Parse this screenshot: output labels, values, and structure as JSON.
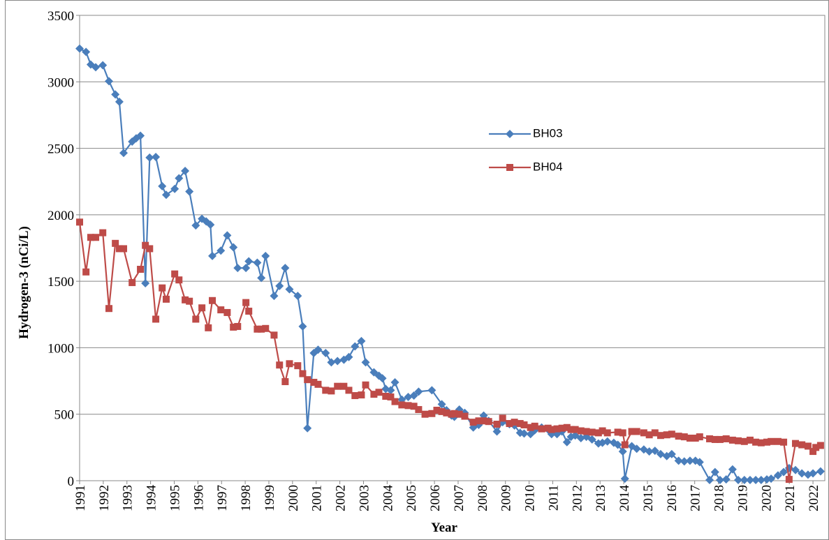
{
  "chart_data": {
    "type": "line",
    "xlabel": "Year",
    "ylabel": "Hydrogen-3 (nCi/L)",
    "xlim": [
      1991,
      2022.5
    ],
    "ylim": [
      0,
      3500
    ],
    "xticks": [
      1991,
      1992,
      1993,
      1994,
      1995,
      1996,
      1997,
      1998,
      1999,
      2000,
      2001,
      2002,
      2003,
      2004,
      2005,
      2006,
      2007,
      2008,
      2009,
      2010,
      2011,
      2012,
      2013,
      2014,
      2015,
      2016,
      2017,
      2018,
      2019,
      2020,
      2021,
      2022
    ],
    "yticks": [
      0,
      500,
      1000,
      1500,
      2000,
      2500,
      3000,
      3500
    ],
    "grid": true,
    "legend": "upper-center",
    "series": [
      {
        "name": "BH03",
        "color": "#4a7ebb",
        "marker": "diamond",
        "x": [
          1991,
          1991.27,
          1991.47,
          1991.68,
          1991.98,
          1992.24,
          1992.51,
          1992.68,
          1992.86,
          1993.22,
          1993.39,
          1993.57,
          1993.78,
          1993.96,
          1994.22,
          1994.49,
          1994.66,
          1995.02,
          1995.2,
          1995.46,
          1995.64,
          1995.91,
          1996.17,
          1996.35,
          1996.53,
          1996.61,
          1996.97,
          1997.24,
          1997.5,
          1997.68,
          1998.03,
          1998.15,
          1998.51,
          1998.68,
          1998.86,
          1999.22,
          1999.45,
          1999.69,
          1999.87,
          2000.22,
          2000.43,
          2000.63,
          2000.9,
          2001.08,
          2001.4,
          2001.64,
          2001.9,
          2002.17,
          2002.38,
          2002.64,
          2002.91,
          2003.09,
          2003.44,
          2003.65,
          2003.8,
          2003.94,
          2004.15,
          2004.33,
          2004.62,
          2004.89,
          2005.13,
          2005.33,
          2005.89,
          2006.31,
          2006.51,
          2006.72,
          2006.84,
          2007.05,
          2007.28,
          2007.64,
          2007.87,
          2008.08,
          2008.29,
          2008.64,
          2008.88,
          2009.17,
          2009.38,
          2009.62,
          2009.79,
          2010.06,
          2010.24,
          2010.53,
          2010.8,
          2010.95,
          2011.18,
          2011.39,
          2011.6,
          2011.77,
          2011.95,
          2012.19,
          2012.42,
          2012.66,
          2012.93,
          2013.1,
          2013.31,
          2013.58,
          2013.75,
          2013.96,
          2014.05,
          2014.34,
          2014.55,
          2014.85,
          2015.08,
          2015.32,
          2015.56,
          2015.82,
          2016.03,
          2016.32,
          2016.56,
          2016.8,
          2017.03,
          2017.21,
          2017.63,
          2017.86,
          2018.07,
          2018.33,
          2018.6,
          2018.84,
          2019.1,
          2019.34,
          2019.58,
          2019.81,
          2020.05,
          2020.23,
          2020.52,
          2020.76,
          2020.99,
          2021.26,
          2021.53,
          2021.79,
          2022,
          2022.32
        ],
        "values": [
          3250,
          3225,
          3130,
          3110,
          3125,
          3005,
          2905,
          2850,
          2465,
          2550,
          2575,
          2595,
          1485,
          2430,
          2435,
          2215,
          2150,
          2195,
          2275,
          2330,
          2175,
          1920,
          1970,
          1950,
          1925,
          1690,
          1730,
          1845,
          1755,
          1600,
          1600,
          1650,
          1640,
          1525,
          1690,
          1390,
          1465,
          1600,
          1440,
          1390,
          1160,
          395,
          960,
          985,
          960,
          890,
          900,
          910,
          930,
          1010,
          1050,
          890,
          815,
          790,
          770,
          690,
          680,
          740,
          610,
          630,
          640,
          670,
          680,
          575,
          530,
          490,
          480,
          535,
          510,
          400,
          420,
          490,
          450,
          370,
          440,
          425,
          415,
          360,
          355,
          350,
          380,
          400,
          385,
          350,
          350,
          370,
          290,
          330,
          340,
          320,
          330,
          310,
          280,
          285,
          295,
          285,
          270,
          220,
          15,
          260,
          240,
          235,
          220,
          225,
          200,
          185,
          200,
          150,
          145,
          150,
          150,
          140,
          5,
          65,
          5,
          10,
          85,
          5,
          5,
          5,
          5,
          5,
          10,
          15,
          40,
          65,
          95,
          80,
          55,
          45,
          55,
          70
        ]
      },
      {
        "name": "BH04",
        "color": "#be4b48",
        "marker": "square",
        "x": [
          1991,
          1991.27,
          1991.47,
          1991.68,
          1991.98,
          1992.24,
          1992.51,
          1992.68,
          1992.86,
          1993.22,
          1993.57,
          1993.78,
          1993.96,
          1994.22,
          1994.49,
          1994.66,
          1995.02,
          1995.2,
          1995.46,
          1995.64,
          1995.91,
          1996.17,
          1996.44,
          1996.61,
          1996.97,
          1997.24,
          1997.5,
          1997.68,
          1998.03,
          1998.15,
          1998.51,
          1998.68,
          1998.86,
          1999.22,
          1999.45,
          1999.69,
          1999.87,
          2000.22,
          2000.43,
          2000.63,
          2000.9,
          2001.08,
          2001.4,
          2001.64,
          2001.9,
          2002.17,
          2002.38,
          2002.64,
          2002.91,
          2003.09,
          2003.44,
          2003.65,
          2003.94,
          2004.15,
          2004.33,
          2004.62,
          2004.89,
          2005.13,
          2005.33,
          2005.6,
          2005.89,
          2006.1,
          2006.31,
          2006.51,
          2006.72,
          2006.84,
          2007.05,
          2007.28,
          2007.64,
          2007.87,
          2008.08,
          2008.29,
          2008.64,
          2008.88,
          2009.17,
          2009.38,
          2009.62,
          2009.79,
          2010.06,
          2010.24,
          2010.53,
          2010.8,
          2010.95,
          2011.18,
          2011.39,
          2011.6,
          2011.77,
          2011.95,
          2012.19,
          2012.42,
          2012.66,
          2012.93,
          2013.1,
          2013.31,
          2013.75,
          2013.96,
          2014.05,
          2014.34,
          2014.55,
          2014.85,
          2015.08,
          2015.32,
          2015.56,
          2015.82,
          2016.03,
          2016.32,
          2016.56,
          2016.8,
          2017.03,
          2017.21,
          2017.63,
          2017.86,
          2018.07,
          2018.33,
          2018.6,
          2018.84,
          2019.1,
          2019.34,
          2019.58,
          2019.81,
          2020.05,
          2020.23,
          2020.52,
          2020.76,
          2020.99,
          2021.26,
          2021.53,
          2021.79,
          2022,
          2022.12,
          2022.32
        ],
        "values": [
          1945,
          1570,
          1830,
          1830,
          1865,
          1295,
          1785,
          1745,
          1745,
          1490,
          1590,
          1770,
          1745,
          1215,
          1450,
          1365,
          1555,
          1510,
          1360,
          1350,
          1215,
          1300,
          1150,
          1355,
          1285,
          1265,
          1155,
          1160,
          1340,
          1275,
          1140,
          1140,
          1145,
          1095,
          870,
          745,
          880,
          865,
          805,
          760,
          740,
          725,
          680,
          675,
          710,
          710,
          680,
          640,
          645,
          720,
          650,
          665,
          635,
          630,
          595,
          570,
          565,
          560,
          535,
          500,
          505,
          530,
          520,
          510,
          500,
          505,
          500,
          485,
          440,
          450,
          450,
          445,
          425,
          470,
          430,
          440,
          430,
          420,
          400,
          410,
          390,
          395,
          385,
          390,
          395,
          400,
          385,
          385,
          375,
          370,
          365,
          360,
          375,
          360,
          365,
          360,
          270,
          370,
          370,
          360,
          345,
          360,
          340,
          345,
          350,
          335,
          330,
          320,
          320,
          330,
          315,
          310,
          310,
          315,
          305,
          300,
          295,
          305,
          290,
          285,
          290,
          295,
          295,
          290,
          10,
          280,
          270,
          260,
          220,
          250,
          265
        ]
      }
    ]
  }
}
